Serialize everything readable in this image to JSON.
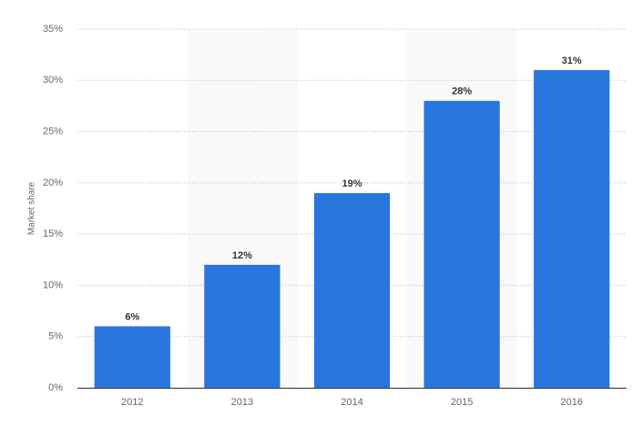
{
  "chart_data": {
    "type": "bar",
    "y_label": "Market share",
    "categories": [
      "2012",
      "2013",
      "2014",
      "2015",
      "2016"
    ],
    "values": [
      6,
      12,
      19,
      28,
      31
    ],
    "value_labels": [
      "6%",
      "12%",
      "19%",
      "28%",
      "31%"
    ],
    "color": "#2876dd",
    "ylim": [
      0,
      35
    ],
    "yticks": [
      {
        "value": 0,
        "label": "0%"
      },
      {
        "value": 5,
        "label": "5%"
      },
      {
        "value": 10,
        "label": "10%"
      },
      {
        "value": 15,
        "label": "15%"
      },
      {
        "value": 20,
        "label": "20%"
      },
      {
        "value": 25,
        "label": "25%"
      },
      {
        "value": 30,
        "label": "30%"
      },
      {
        "value": 35,
        "label": "35%"
      }
    ],
    "grid": true
  }
}
